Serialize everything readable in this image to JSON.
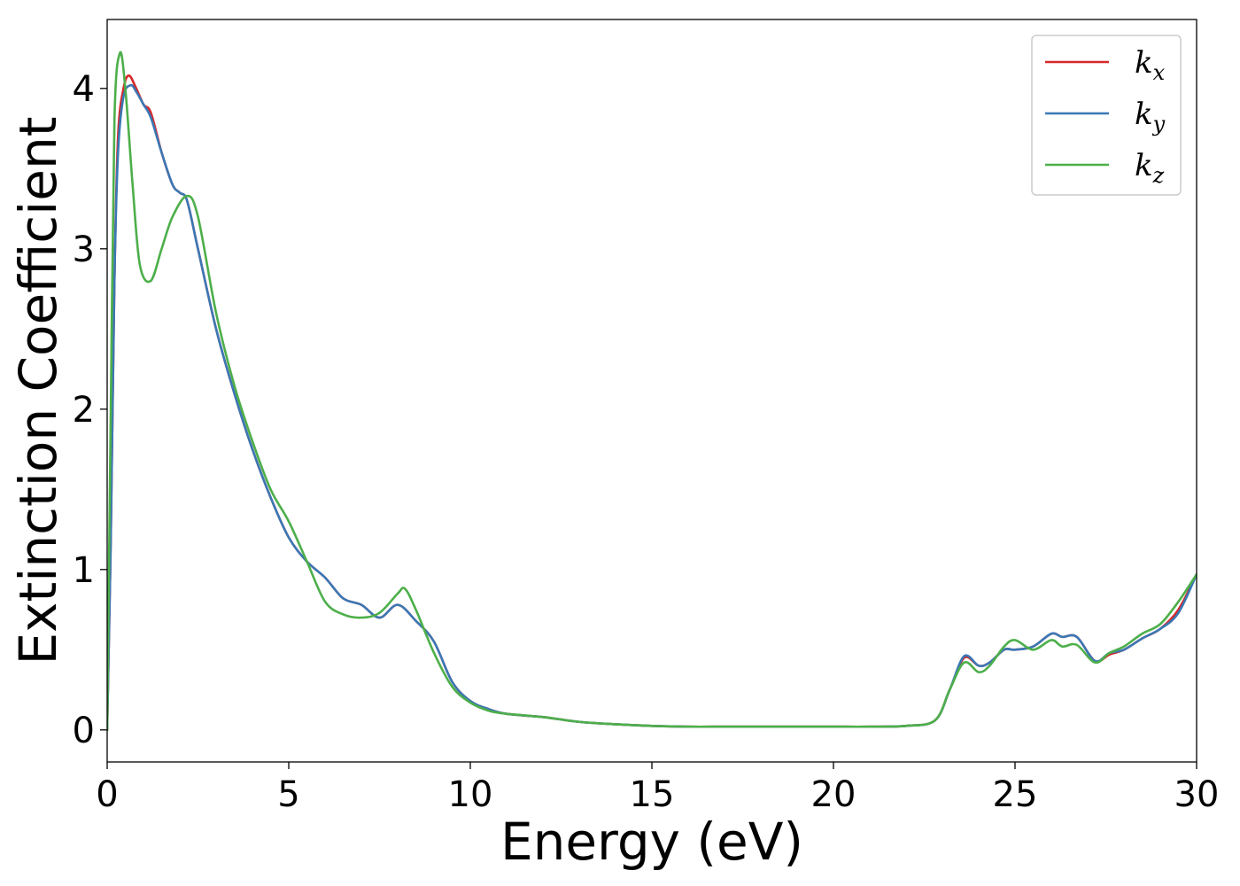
{
  "chart_data": {
    "type": "line",
    "xlabel": "Energy (eV)",
    "ylabel": "Extinction Coefficient",
    "xlim": [
      0,
      30
    ],
    "ylim": [
      -0.2,
      4.43
    ],
    "xticks": [
      0,
      5,
      10,
      15,
      20,
      25,
      30
    ],
    "xtick_labels": [
      "0",
      "5",
      "10",
      "15",
      "20",
      "25",
      "30"
    ],
    "yticks": [
      0,
      1,
      2,
      3,
      4
    ],
    "ytick_labels": [
      "0",
      "1",
      "2",
      "3",
      "4"
    ],
    "grid": false,
    "legend_position": "top-right",
    "series": [
      {
        "name": "k_x",
        "legend_base": "k",
        "legend_sub": "x",
        "color": "#d62728",
        "points": [
          [
            0,
            0
          ],
          [
            0.1,
            1.2
          ],
          [
            0.2,
            2.8
          ],
          [
            0.3,
            3.7
          ],
          [
            0.45,
            4.0
          ],
          [
            0.6,
            4.08
          ],
          [
            0.8,
            4.0
          ],
          [
            1.0,
            3.9
          ],
          [
            1.2,
            3.85
          ],
          [
            1.5,
            3.6
          ],
          [
            1.8,
            3.4
          ],
          [
            2.0,
            3.35
          ],
          [
            2.2,
            3.3
          ],
          [
            2.5,
            3.0
          ],
          [
            3.0,
            2.5
          ],
          [
            3.5,
            2.1
          ],
          [
            4.0,
            1.75
          ],
          [
            4.5,
            1.45
          ],
          [
            5.0,
            1.2
          ],
          [
            5.5,
            1.05
          ],
          [
            6.0,
            0.95
          ],
          [
            6.5,
            0.82
          ],
          [
            7.0,
            0.78
          ],
          [
            7.5,
            0.7
          ],
          [
            8.0,
            0.78
          ],
          [
            8.5,
            0.68
          ],
          [
            9.0,
            0.55
          ],
          [
            9.5,
            0.3
          ],
          [
            10,
            0.18
          ],
          [
            10.5,
            0.13
          ],
          [
            11,
            0.1
          ],
          [
            12,
            0.08
          ],
          [
            13,
            0.05
          ],
          [
            14,
            0.035
          ],
          [
            15,
            0.025
          ],
          [
            16,
            0.02
          ],
          [
            17,
            0.02
          ],
          [
            18,
            0.02
          ],
          [
            19,
            0.02
          ],
          [
            20,
            0.02
          ],
          [
            21,
            0.02
          ],
          [
            22,
            0.025
          ],
          [
            22.8,
            0.06
          ],
          [
            23.2,
            0.25
          ],
          [
            23.6,
            0.45
          ],
          [
            24.0,
            0.4
          ],
          [
            24.3,
            0.42
          ],
          [
            24.7,
            0.5
          ],
          [
            25.0,
            0.5
          ],
          [
            25.5,
            0.52
          ],
          [
            26.0,
            0.6
          ],
          [
            26.3,
            0.58
          ],
          [
            26.7,
            0.58
          ],
          [
            27.2,
            0.43
          ],
          [
            27.6,
            0.47
          ],
          [
            28.0,
            0.5
          ],
          [
            28.5,
            0.57
          ],
          [
            29.0,
            0.63
          ],
          [
            29.5,
            0.75
          ],
          [
            30,
            0.97
          ]
        ]
      },
      {
        "name": "k_y",
        "legend_base": "k",
        "legend_sub": "y",
        "color": "#3a78b5",
        "points": [
          [
            0,
            0
          ],
          [
            0.1,
            1.2
          ],
          [
            0.2,
            2.8
          ],
          [
            0.3,
            3.6
          ],
          [
            0.45,
            3.95
          ],
          [
            0.65,
            4.02
          ],
          [
            0.8,
            3.98
          ],
          [
            1.0,
            3.9
          ],
          [
            1.2,
            3.82
          ],
          [
            1.5,
            3.6
          ],
          [
            1.8,
            3.4
          ],
          [
            2.0,
            3.35
          ],
          [
            2.2,
            3.3
          ],
          [
            2.5,
            3.0
          ],
          [
            3.0,
            2.5
          ],
          [
            3.5,
            2.1
          ],
          [
            4.0,
            1.75
          ],
          [
            4.5,
            1.45
          ],
          [
            5.0,
            1.2
          ],
          [
            5.5,
            1.05
          ],
          [
            6.0,
            0.95
          ],
          [
            6.5,
            0.82
          ],
          [
            7.0,
            0.78
          ],
          [
            7.5,
            0.7
          ],
          [
            8.0,
            0.78
          ],
          [
            8.5,
            0.68
          ],
          [
            9.0,
            0.55
          ],
          [
            9.5,
            0.3
          ],
          [
            10,
            0.18
          ],
          [
            10.5,
            0.13
          ],
          [
            11,
            0.1
          ],
          [
            12,
            0.08
          ],
          [
            13,
            0.05
          ],
          [
            14,
            0.035
          ],
          [
            15,
            0.025
          ],
          [
            16,
            0.02
          ],
          [
            17,
            0.02
          ],
          [
            18,
            0.02
          ],
          [
            19,
            0.02
          ],
          [
            20,
            0.02
          ],
          [
            21,
            0.02
          ],
          [
            22,
            0.025
          ],
          [
            22.8,
            0.06
          ],
          [
            23.2,
            0.25
          ],
          [
            23.6,
            0.46
          ],
          [
            24.0,
            0.4
          ],
          [
            24.3,
            0.42
          ],
          [
            24.7,
            0.5
          ],
          [
            25.0,
            0.5
          ],
          [
            25.5,
            0.52
          ],
          [
            26.0,
            0.6
          ],
          [
            26.3,
            0.58
          ],
          [
            26.7,
            0.58
          ],
          [
            27.2,
            0.43
          ],
          [
            27.6,
            0.48
          ],
          [
            28.0,
            0.5
          ],
          [
            28.5,
            0.57
          ],
          [
            29.0,
            0.63
          ],
          [
            29.5,
            0.73
          ],
          [
            30,
            0.97
          ]
        ]
      },
      {
        "name": "k_z",
        "legend_base": "k",
        "legend_sub": "z",
        "color": "#4daf4a",
        "points": [
          [
            0,
            0
          ],
          [
            0.1,
            2.0
          ],
          [
            0.2,
            3.8
          ],
          [
            0.35,
            4.22
          ],
          [
            0.5,
            4.0
          ],
          [
            0.7,
            3.4
          ],
          [
            0.9,
            2.9
          ],
          [
            1.2,
            2.8
          ],
          [
            1.5,
            3.0
          ],
          [
            1.8,
            3.2
          ],
          [
            2.2,
            3.33
          ],
          [
            2.5,
            3.2
          ],
          [
            3.0,
            2.6
          ],
          [
            3.5,
            2.15
          ],
          [
            4.0,
            1.8
          ],
          [
            4.5,
            1.5
          ],
          [
            5.0,
            1.3
          ],
          [
            5.5,
            1.05
          ],
          [
            6.0,
            0.8
          ],
          [
            6.5,
            0.72
          ],
          [
            7.0,
            0.7
          ],
          [
            7.5,
            0.73
          ],
          [
            8.0,
            0.85
          ],
          [
            8.2,
            0.88
          ],
          [
            8.5,
            0.75
          ],
          [
            9.0,
            0.48
          ],
          [
            9.5,
            0.27
          ],
          [
            10,
            0.17
          ],
          [
            10.5,
            0.12
          ],
          [
            11,
            0.1
          ],
          [
            12,
            0.08
          ],
          [
            13,
            0.05
          ],
          [
            14,
            0.035
          ],
          [
            15,
            0.025
          ],
          [
            16,
            0.02
          ],
          [
            17,
            0.02
          ],
          [
            18,
            0.02
          ],
          [
            19,
            0.02
          ],
          [
            20,
            0.02
          ],
          [
            21,
            0.02
          ],
          [
            22,
            0.025
          ],
          [
            22.8,
            0.06
          ],
          [
            23.2,
            0.25
          ],
          [
            23.6,
            0.42
          ],
          [
            24.0,
            0.36
          ],
          [
            24.3,
            0.4
          ],
          [
            24.7,
            0.52
          ],
          [
            25.0,
            0.56
          ],
          [
            25.5,
            0.5
          ],
          [
            26.0,
            0.56
          ],
          [
            26.3,
            0.52
          ],
          [
            26.7,
            0.53
          ],
          [
            27.2,
            0.42
          ],
          [
            27.6,
            0.48
          ],
          [
            28.0,
            0.52
          ],
          [
            28.5,
            0.6
          ],
          [
            29.0,
            0.66
          ],
          [
            29.5,
            0.8
          ],
          [
            30,
            0.97
          ]
        ]
      }
    ]
  }
}
